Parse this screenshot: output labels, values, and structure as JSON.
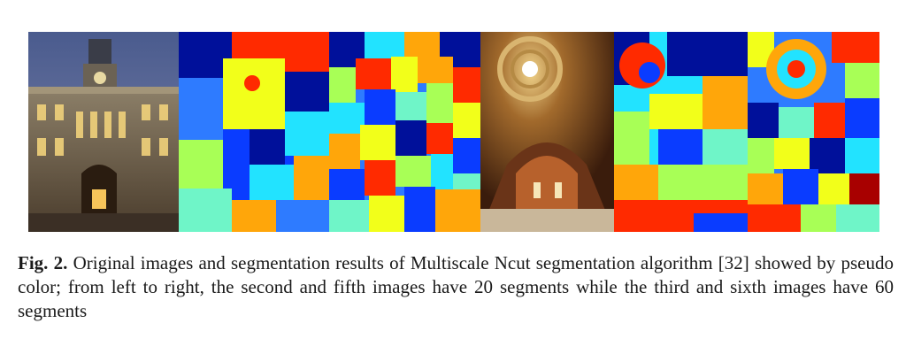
{
  "figure": {
    "caption_label": "Fig. 2.",
    "caption_text": "Original images and segmentation results of Multiscale Ncut segmentation algorithm [32] showed by pseudo color; from left to right, the second and fifth images have 20 segments while the third and sixth images have 60 segments",
    "panels": [
      {
        "kind": "photo",
        "subject": "building facade at dusk"
      },
      {
        "kind": "segmentation",
        "segments": 20
      },
      {
        "kind": "segmentation",
        "segments": 60
      },
      {
        "kind": "photo",
        "subject": "church dome interior"
      },
      {
        "kind": "segmentation",
        "segments": 20
      },
      {
        "kind": "segmentation",
        "segments": 60
      }
    ]
  },
  "palette": {
    "darkblue": "#00109a",
    "blue": "#0a3cff",
    "midblue": "#2e7bff",
    "cyan": "#22e3ff",
    "aqua": "#6ff5c8",
    "green": "#a8ff56",
    "yellow": "#f2ff1a",
    "orange": "#ffa60a",
    "red": "#ff2a00",
    "darkred": "#a80000"
  }
}
